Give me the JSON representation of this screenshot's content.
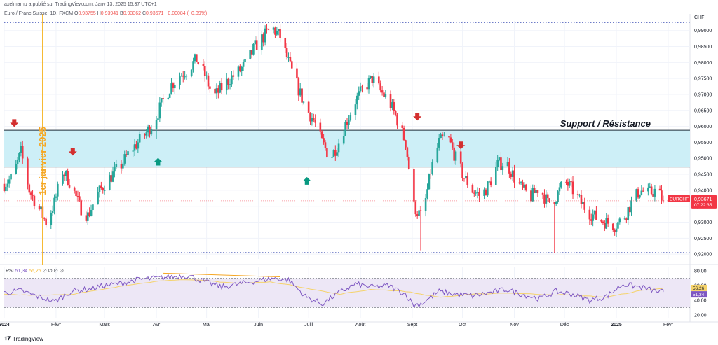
{
  "header": {
    "publisher": "axelmarhu a publié sur TradingView.com, Janv 13, 2025 15:37 UTC+1",
    "symbol_line": "Euro / Franc Suisse, 1D, FXCM",
    "o_label": "O",
    "o": "0,93755",
    "h_label": "H",
    "h": "0,93941",
    "b_label": "B",
    "b": "0,93362",
    "c_label": "C",
    "c": "0,93671",
    "chg": "−0,00084 (−0,09%)"
  },
  "currency": "CHF",
  "annotations": {
    "zone_label": "Support / Résistance",
    "vline_label": "1er janvier 2025"
  },
  "price_badge": {
    "symbol": "EURCHF",
    "price": "0,93671",
    "countdown": "07:22:35"
  },
  "rsi_header": {
    "label": "RSI",
    "value": "51,34",
    "ma": "56,26",
    "extras": "∅ ∅ ∅ ∅"
  },
  "rsi_badges": {
    "ma": "56,26",
    "rsi": "51,34"
  },
  "footer": {
    "brand": "TradingView"
  },
  "colors": {
    "up": "#26a69a",
    "down": "#f23645",
    "zone_fill": "#cdeff7",
    "zone_line": "#1e2a36",
    "vline": "#f5b21b",
    "vline_text": "#f5a623",
    "rsi_line": "#7e57c2",
    "rsi_ma": "#f5d36b",
    "rsi_band": "#ede7f6",
    "arrow_down": "#d32f2f",
    "arrow_up": "#089981"
  },
  "chart_data": [
    {
      "type": "candlestick",
      "title": "Euro / Franc Suisse, 1D, FXCM",
      "ylabel": "CHF",
      "ylim": [
        0.9185,
        0.993
      ],
      "yticks": [
        "0,99000",
        "0,98500",
        "0,98000",
        "0,97500",
        "0,97000",
        "0,96500",
        "0,96000",
        "0,95500",
        "0,95000",
        "0,94500",
        "0,94000",
        "0,93500",
        "0,93000",
        "0,92500",
        "0,92000"
      ],
      "ytick_values": [
        0.99,
        0.985,
        0.98,
        0.975,
        0.97,
        0.965,
        0.96,
        0.955,
        0.95,
        0.945,
        0.94,
        0.935,
        0.93,
        0.925,
        0.92
      ],
      "xtick_labels": [
        "2024",
        "Févr",
        "Mars",
        "Avr",
        "Mai",
        "Juin",
        "Juill",
        "Août",
        "Sept",
        "Oct",
        "Nov",
        "Déc",
        "2025",
        "Févr"
      ],
      "xtick_days": [
        0,
        31,
        60,
        91,
        121,
        152,
        182,
        213,
        244,
        274,
        305,
        335,
        366,
        397
      ],
      "close_path": [
        [
          0,
          0.942
        ],
        [
          5,
          0.944
        ],
        [
          10,
          0.952
        ],
        [
          15,
          0.94
        ],
        [
          20,
          0.935
        ],
        [
          25,
          0.93
        ],
        [
          30,
          0.936
        ],
        [
          35,
          0.946
        ],
        [
          40,
          0.942
        ],
        [
          45,
          0.935
        ],
        [
          50,
          0.932
        ],
        [
          55,
          0.938
        ],
        [
          60,
          0.942
        ],
        [
          65,
          0.945
        ],
        [
          70,
          0.948
        ],
        [
          75,
          0.952
        ],
        [
          80,
          0.955
        ],
        [
          85,
          0.958
        ],
        [
          90,
          0.962
        ],
        [
          95,
          0.968
        ],
        [
          100,
          0.973
        ],
        [
          105,
          0.976
        ],
        [
          110,
          0.978
        ],
        [
          115,
          0.981
        ],
        [
          120,
          0.976
        ],
        [
          125,
          0.969
        ],
        [
          130,
          0.972
        ],
        [
          135,
          0.975
        ],
        [
          140,
          0.977
        ],
        [
          145,
          0.98
        ],
        [
          150,
          0.985
        ],
        [
          155,
          0.988
        ],
        [
          160,
          0.991
        ],
        [
          165,
          0.988
        ],
        [
          170,
          0.98
        ],
        [
          175,
          0.973
        ],
        [
          180,
          0.966
        ],
        [
          185,
          0.962
        ],
        [
          190,
          0.955
        ],
        [
          195,
          0.95
        ],
        [
          200,
          0.955
        ],
        [
          205,
          0.962
        ],
        [
          210,
          0.968
        ],
        [
          215,
          0.972
        ],
        [
          220,
          0.975
        ],
        [
          225,
          0.971
        ],
        [
          230,
          0.968
        ],
        [
          235,
          0.962
        ],
        [
          240,
          0.955
        ],
        [
          245,
          0.935
        ],
        [
          250,
          0.931
        ],
        [
          255,
          0.946
        ],
        [
          260,
          0.955
        ],
        [
          265,
          0.957
        ],
        [
          270,
          0.95
        ],
        [
          275,
          0.944
        ],
        [
          280,
          0.94
        ],
        [
          285,
          0.938
        ],
        [
          290,
          0.942
        ],
        [
          295,
          0.948
        ],
        [
          300,
          0.949
        ],
        [
          305,
          0.944
        ],
        [
          310,
          0.94
        ],
        [
          315,
          0.938
        ],
        [
          320,
          0.941
        ],
        [
          325,
          0.936
        ],
        [
          330,
          0.938
        ],
        [
          335,
          0.943
        ],
        [
          340,
          0.94
        ],
        [
          345,
          0.936
        ],
        [
          350,
          0.933
        ],
        [
          355,
          0.931
        ],
        [
          360,
          0.93
        ],
        [
          365,
          0.929
        ],
        [
          370,
          0.931
        ],
        [
          375,
          0.936
        ],
        [
          380,
          0.94
        ],
        [
          385,
          0.939
        ],
        [
          390,
          0.94
        ],
        [
          394,
          0.9367
        ]
      ],
      "key_levels": [
        0.9925,
        0.9205
      ],
      "zone": [
        0.9473,
        0.9588
      ],
      "down_arrows": [
        [
          6,
          0.9605
        ],
        [
          41,
          0.9515
        ],
        [
          247,
          0.9625
        ],
        [
          273,
          0.9535
        ]
      ],
      "up_arrows": [
        [
          92,
          0.9495
        ],
        [
          181,
          0.9435
        ]
      ],
      "vline_day": 23,
      "current_price": 0.93671
    },
    {
      "type": "line",
      "title": "RSI",
      "ylim": [
        15,
        85
      ],
      "yticks": [
        "80,00",
        "60,00",
        "40,00",
        "20,00"
      ],
      "ytick_values": [
        80,
        60,
        40,
        20
      ],
      "band": [
        30,
        70
      ],
      "mid": 50,
      "series": [
        {
          "name": "RSI",
          "values": [
            [
              0,
              50
            ],
            [
              10,
              53
            ],
            [
              20,
              45
            ],
            [
              30,
              38
            ],
            [
              40,
              52
            ],
            [
              50,
              55
            ],
            [
              60,
              60
            ],
            [
              70,
              63
            ],
            [
              80,
              68
            ],
            [
              90,
              70
            ],
            [
              100,
              72
            ],
            [
              110,
              74
            ],
            [
              120,
              65
            ],
            [
              130,
              58
            ],
            [
              140,
              62
            ],
            [
              150,
              66
            ],
            [
              160,
              70
            ],
            [
              170,
              68
            ],
            [
              180,
              45
            ],
            [
              190,
              35
            ],
            [
              200,
              50
            ],
            [
              210,
              62
            ],
            [
              220,
              58
            ],
            [
              230,
              60
            ],
            [
              240,
              48
            ],
            [
              245,
              33
            ],
            [
              250,
              36
            ],
            [
              260,
              52
            ],
            [
              270,
              48
            ],
            [
              280,
              46
            ],
            [
              290,
              50
            ],
            [
              300,
              55
            ],
            [
              310,
              48
            ],
            [
              320,
              42
            ],
            [
              330,
              52
            ],
            [
              340,
              48
            ],
            [
              350,
              40
            ],
            [
              360,
              45
            ],
            [
              370,
              62
            ],
            [
              380,
              58
            ],
            [
              390,
              52
            ],
            [
              394,
              51.34
            ]
          ]
        },
        {
          "name": "MA",
          "values": [
            [
              0,
              48
            ],
            [
              20,
              47
            ],
            [
              40,
              48
            ],
            [
              60,
              55
            ],
            [
              80,
              63
            ],
            [
              100,
              68
            ],
            [
              120,
              67
            ],
            [
              140,
              63
            ],
            [
              160,
              65
            ],
            [
              180,
              57
            ],
            [
              200,
              48
            ],
            [
              220,
              55
            ],
            [
              240,
              52
            ],
            [
              260,
              44
            ],
            [
              280,
              48
            ],
            [
              300,
              50
            ],
            [
              320,
              48
            ],
            [
              340,
              47
            ],
            [
              360,
              44
            ],
            [
              380,
              53
            ],
            [
              394,
              56.26
            ]
          ]
        }
      ],
      "divergence": [
        [
          95,
          77
        ],
        [
          165,
          72
        ]
      ]
    }
  ]
}
